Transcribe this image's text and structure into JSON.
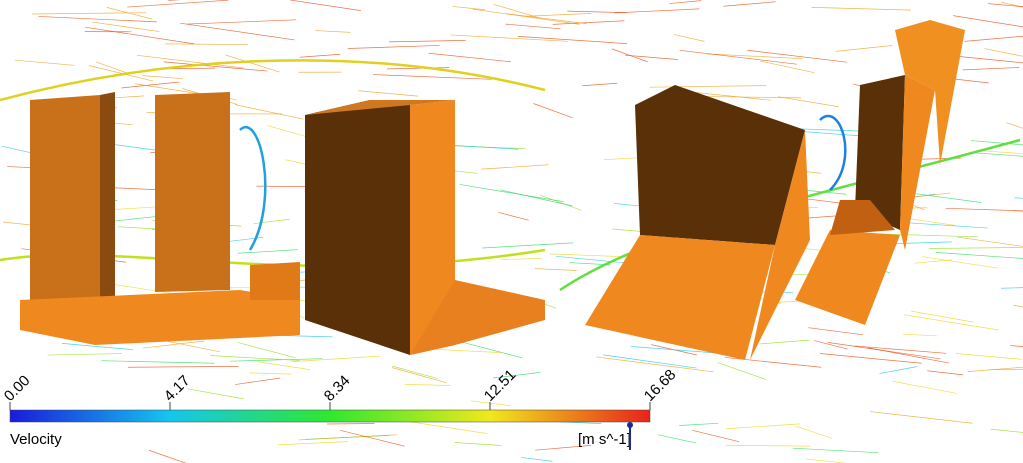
{
  "colorbar": {
    "title": "Velocity",
    "units": "[m s^-1]",
    "ticks": [
      {
        "value": 0,
        "label": "0.00"
      },
      {
        "value": 4.17,
        "label": "4.17"
      },
      {
        "value": 8.34,
        "label": "8.34"
      },
      {
        "value": 12.51,
        "label": "12.51"
      },
      {
        "value": 16.68,
        "label": "16.68"
      }
    ]
  }
}
